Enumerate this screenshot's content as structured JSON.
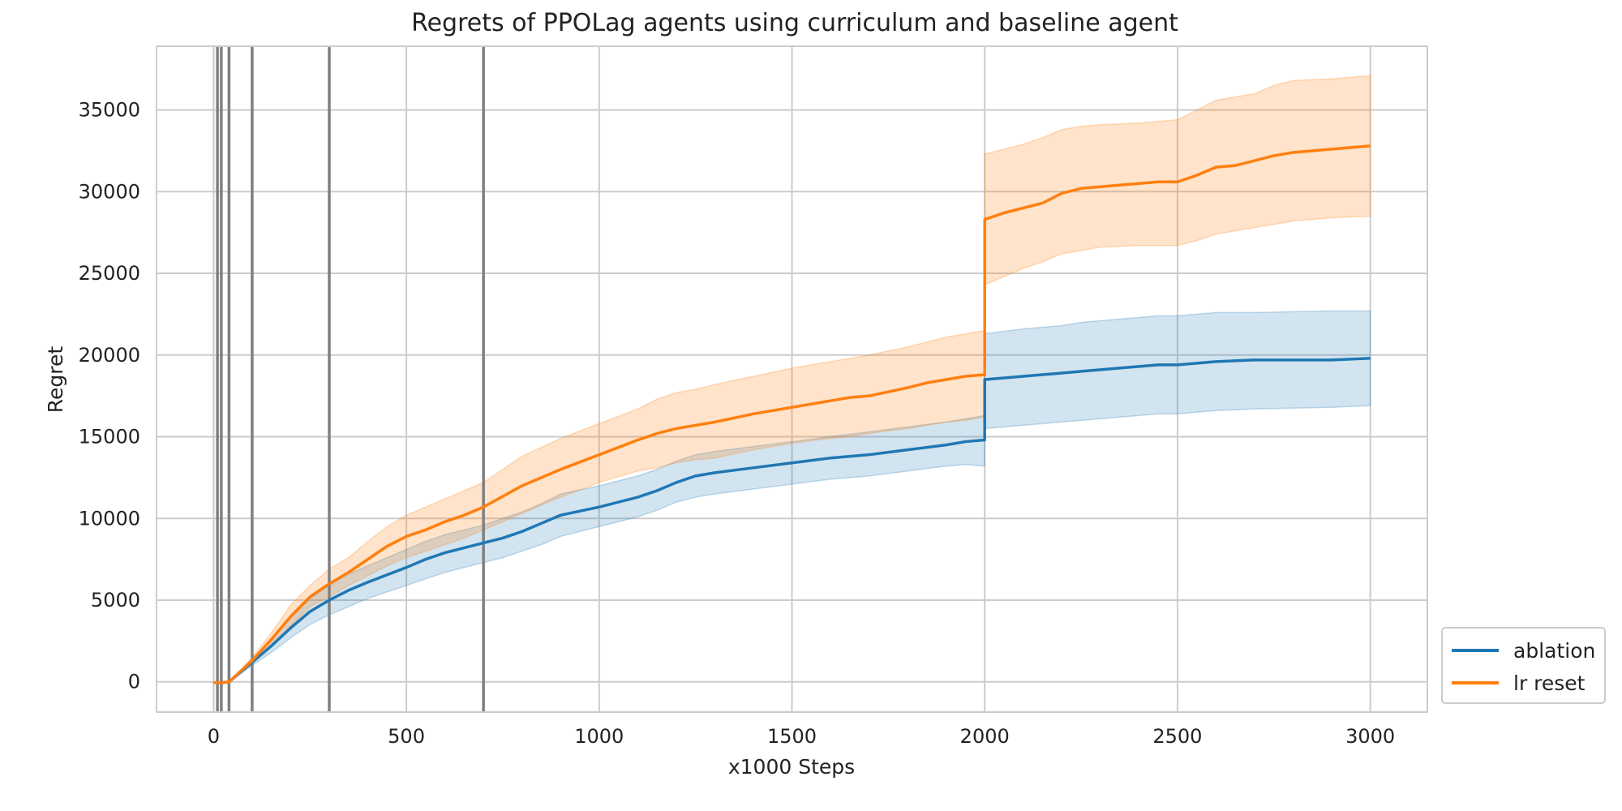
{
  "chart_data": {
    "type": "line",
    "title": "Regrets of PPOLag agents using curriculum and baseline agent",
    "xlabel": "x1000 Steps",
    "ylabel": "Regret",
    "xlim": [
      -148,
      3148
    ],
    "ylim": [
      -1850,
      38900
    ],
    "xticks": [
      0,
      500,
      1000,
      1500,
      2000,
      2500,
      3000
    ],
    "yticks": [
      0,
      5000,
      10000,
      15000,
      20000,
      25000,
      30000,
      35000
    ],
    "grid": true,
    "legend_position": "lower-right-outside",
    "vertical_lines": [
      10,
      20,
      40,
      100,
      300,
      700
    ],
    "vertical_line_color": "#808080",
    "series": [
      {
        "name": "ablation",
        "color": "#1f77b4",
        "x": [
          0,
          20,
          40,
          100,
          150,
          200,
          250,
          300,
          350,
          400,
          500,
          550,
          600,
          700,
          750,
          800,
          850,
          900,
          1000,
          1100,
          1150,
          1200,
          1250,
          1300,
          1400,
          1500,
          1600,
          1700,
          1800,
          1900,
          1950,
          2000,
          2000,
          2100,
          2150,
          2200,
          2250,
          2300,
          2400,
          2450,
          2500,
          2550,
          2600,
          2700,
          2900,
          3000
        ],
        "y": [
          -50,
          -50,
          0,
          1200,
          2200,
          3300,
          4300,
          5000,
          5600,
          6100,
          7000,
          7500,
          7900,
          8500,
          8800,
          9200,
          9700,
          10200,
          10700,
          11300,
          11700,
          12200,
          12600,
          12800,
          13100,
          13400,
          13700,
          13900,
          14200,
          14500,
          14700,
          14800,
          18500,
          18700,
          18800,
          18900,
          19000,
          19100,
          19300,
          19400,
          19400,
          19500,
          19600,
          19700,
          19700,
          19800
        ],
        "lower": [
          -50,
          -50,
          0,
          1000,
          1800,
          2700,
          3500,
          4100,
          4600,
          5100,
          5900,
          6300,
          6700,
          7300,
          7600,
          8000,
          8400,
          8900,
          9500,
          10100,
          10500,
          11000,
          11300,
          11500,
          11800,
          12100,
          12400,
          12600,
          12900,
          13200,
          13300,
          13200,
          15500,
          15700,
          15800,
          15900,
          16000,
          16100,
          16300,
          16400,
          16400,
          16500,
          16600,
          16700,
          16800,
          16900
        ],
        "upper": [
          -50,
          -50,
          0,
          1400,
          2600,
          3900,
          5100,
          5900,
          6600,
          7100,
          8100,
          8600,
          9000,
          9600,
          10000,
          10400,
          10900,
          11500,
          12000,
          12600,
          13000,
          13500,
          13900,
          14100,
          14400,
          14700,
          15000,
          15300,
          15600,
          15900,
          16100,
          16300,
          21300,
          21600,
          21700,
          21800,
          22000,
          22100,
          22300,
          22400,
          22400,
          22500,
          22600,
          22600,
          22700,
          22700
        ]
      },
      {
        "name": "lr reset",
        "color": "#ff7f0e",
        "x": [
          0,
          20,
          40,
          100,
          150,
          200,
          250,
          300,
          350,
          400,
          450,
          500,
          550,
          600,
          650,
          700,
          800,
          900,
          1000,
          1100,
          1150,
          1200,
          1250,
          1300,
          1400,
          1500,
          1600,
          1650,
          1700,
          1800,
          1850,
          1900,
          1950,
          2000,
          2000,
          2050,
          2100,
          2150,
          2200,
          2250,
          2300,
          2400,
          2450,
          2500,
          2550,
          2600,
          2650,
          2700,
          2750,
          2800,
          2900,
          3000
        ],
        "y": [
          -50,
          -50,
          0,
          1300,
          2600,
          4000,
          5200,
          6000,
          6700,
          7500,
          8300,
          8900,
          9300,
          9800,
          10200,
          10700,
          12000,
          13000,
          13900,
          14800,
          15200,
          15500,
          15700,
          15900,
          16400,
          16800,
          17200,
          17400,
          17500,
          18000,
          18300,
          18500,
          18700,
          18800,
          28300,
          28700,
          29000,
          29300,
          29900,
          30200,
          30300,
          30500,
          30600,
          30600,
          31000,
          31500,
          31600,
          31900,
          32200,
          32400,
          32600,
          32800
        ],
        "lower": [
          -50,
          -50,
          0,
          1100,
          2200,
          3400,
          4600,
          5200,
          5900,
          6500,
          7100,
          7600,
          8000,
          8400,
          8800,
          9300,
          10300,
          11300,
          12200,
          12900,
          13100,
          13400,
          13600,
          13700,
          14200,
          14600,
          14900,
          15000,
          15200,
          15500,
          15700,
          15900,
          16000,
          16200,
          24300,
          24800,
          25300,
          25700,
          26200,
          26400,
          26600,
          26700,
          26700,
          26700,
          27000,
          27400,
          27600,
          27800,
          28000,
          28200,
          28400,
          28500
        ],
        "upper": [
          -50,
          -50,
          0,
          1500,
          3000,
          4700,
          5900,
          6900,
          7600,
          8600,
          9500,
          10200,
          10700,
          11200,
          11700,
          12200,
          13800,
          14900,
          15800,
          16700,
          17300,
          17700,
          17900,
          18200,
          18700,
          19200,
          19600,
          19800,
          20000,
          20500,
          20800,
          21100,
          21300,
          21500,
          32300,
          32600,
          32900,
          33300,
          33800,
          34000,
          34100,
          34200,
          34300,
          34400,
          35000,
          35600,
          35800,
          36000,
          36500,
          36800,
          36900,
          37100
        ]
      }
    ]
  }
}
